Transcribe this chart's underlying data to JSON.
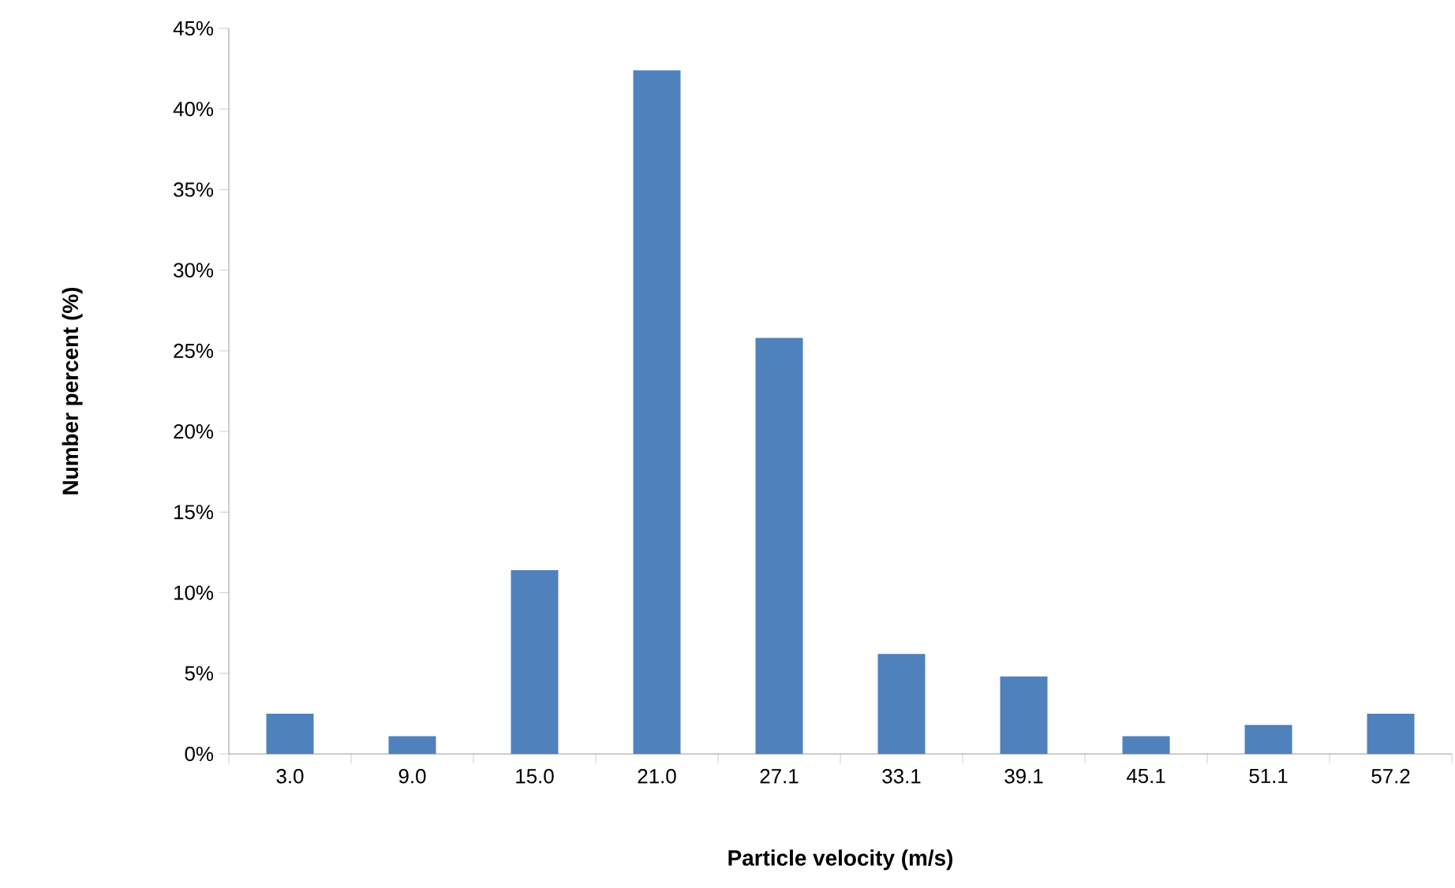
{
  "chart_data": {
    "type": "bar",
    "xlabel": "Particle velocity (m/s)",
    "ylabel": "Number percent (%)",
    "categories": [
      "3.0",
      "9.0",
      "15.0",
      "21.0",
      "27.1",
      "33.1",
      "39.1",
      "45.1",
      "51.1",
      "57.2"
    ],
    "values": [
      2.5,
      1.1,
      11.4,
      42.4,
      25.8,
      6.2,
      4.8,
      1.1,
      1.8,
      2.5
    ],
    "color": "#4f81bd",
    "ylim": [
      0,
      45
    ],
    "yticks": [
      {
        "value": 0,
        "label": "0%"
      },
      {
        "value": 5,
        "label": "5%"
      },
      {
        "value": 10,
        "label": "10%"
      },
      {
        "value": 15,
        "label": "15%"
      },
      {
        "value": 20,
        "label": "20%"
      },
      {
        "value": 25,
        "label": "25%"
      },
      {
        "value": 30,
        "label": "30%"
      },
      {
        "value": 35,
        "label": "35%"
      },
      {
        "value": 40,
        "label": "40%"
      },
      {
        "value": 45,
        "label": "45%"
      }
    ],
    "grid": false
  }
}
